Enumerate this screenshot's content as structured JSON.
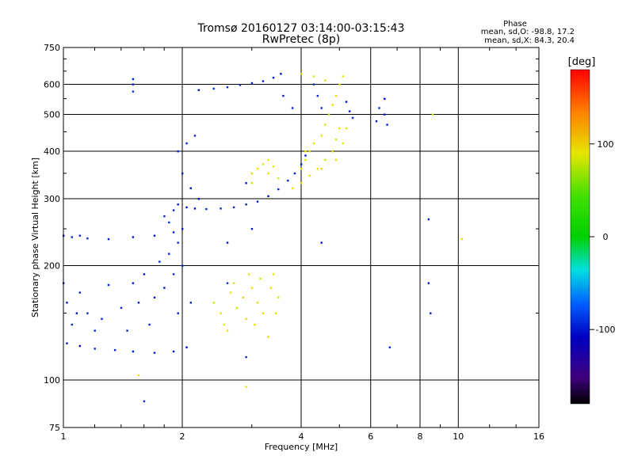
{
  "chart_data": {
    "type": "scatter",
    "title": "Tromsø 20160127 03:14:00-03:15:43",
    "subtitle": "RwPretec (8p)",
    "xlabel": "Frequency [MHz]",
    "ylabel": "Stationary phase Virtual Height [km]",
    "x_scale": "log",
    "y_scale": "log",
    "xlim": [
      1,
      16
    ],
    "ylim": [
      75,
      750
    ],
    "x_ticks": [
      1,
      2,
      4,
      6,
      8,
      10,
      16
    ],
    "x_tick_labels": [
      "1",
      "2",
      "4",
      "6",
      "8",
      "10",
      "16"
    ],
    "y_ticks": [
      75,
      100,
      200,
      300,
      400,
      500,
      600,
      750
    ],
    "y_tick_labels": [
      "75",
      "100",
      "200",
      "300",
      "400",
      "500",
      "600",
      "750"
    ],
    "grid": true,
    "stats": {
      "heading": "Phase",
      "line_o": "mean, sd,O: -98.8, 17.2",
      "line_x": "mean, sd,X:  84.3, 20.4"
    },
    "colorbar": {
      "label": "[deg]",
      "range": [
        -180,
        180
      ],
      "ticks": [
        100,
        0,
        -100
      ],
      "tick_labels": [
        "100",
        "0",
        "-100"
      ]
    },
    "series": [
      {
        "note_phase_deg": -100,
        "points": [
          [
            1.0,
            240
          ],
          [
            1.05,
            238
          ],
          [
            1.1,
            240
          ],
          [
            1.15,
            236
          ],
          [
            1.3,
            235
          ],
          [
            1.5,
            238
          ],
          [
            1.7,
            240
          ],
          [
            1.9,
            245
          ],
          [
            1.85,
            260
          ],
          [
            1.8,
            270
          ],
          [
            1.9,
            280
          ],
          [
            1.95,
            290
          ],
          [
            2.05,
            285
          ],
          [
            2.15,
            283
          ],
          [
            2.3,
            282
          ],
          [
            2.5,
            283
          ],
          [
            2.7,
            285
          ],
          [
            2.9,
            290
          ],
          [
            3.1,
            295
          ],
          [
            3.3,
            305
          ],
          [
            3.5,
            318
          ],
          [
            3.7,
            335
          ],
          [
            3.85,
            350
          ],
          [
            4.0,
            370
          ],
          [
            4.1,
            390
          ],
          [
            1.02,
            125
          ],
          [
            1.1,
            123
          ],
          [
            1.2,
            121
          ],
          [
            1.35,
            120
          ],
          [
            1.5,
            119
          ],
          [
            1.7,
            118
          ],
          [
            1.9,
            119
          ],
          [
            2.05,
            122
          ],
          [
            1.05,
            140
          ],
          [
            1.15,
            150
          ],
          [
            1.25,
            145
          ],
          [
            1.4,
            155
          ],
          [
            1.55,
            160
          ],
          [
            1.7,
            165
          ],
          [
            1.8,
            175
          ],
          [
            1.9,
            190
          ],
          [
            2.0,
            200
          ],
          [
            1.1,
            170
          ],
          [
            1.3,
            178
          ],
          [
            1.5,
            180
          ],
          [
            1.6,
            190
          ],
          [
            1.75,
            205
          ],
          [
            1.85,
            215
          ],
          [
            1.95,
            230
          ],
          [
            2.0,
            250
          ],
          [
            1.0,
            180
          ],
          [
            1.02,
            160
          ],
          [
            1.08,
            150
          ],
          [
            1.2,
            135
          ],
          [
            1.45,
            135
          ],
          [
            1.65,
            140
          ],
          [
            1.95,
            150
          ],
          [
            2.1,
            160
          ],
          [
            2.2,
            580
          ],
          [
            2.4,
            585
          ],
          [
            2.6,
            590
          ],
          [
            2.8,
            598
          ],
          [
            3.0,
            605
          ],
          [
            3.2,
            612
          ],
          [
            3.4,
            625
          ],
          [
            3.55,
            640
          ],
          [
            2.15,
            440
          ],
          [
            2.05,
            420
          ],
          [
            1.95,
            400
          ],
          [
            2.0,
            350
          ],
          [
            2.1,
            320
          ],
          [
            2.2,
            300
          ],
          [
            4.3,
            600
          ],
          [
            4.4,
            560
          ],
          [
            4.5,
            520
          ],
          [
            3.6,
            560
          ],
          [
            3.8,
            520
          ],
          [
            5.2,
            540
          ],
          [
            5.3,
            510
          ],
          [
            5.4,
            490
          ],
          [
            6.3,
            520
          ],
          [
            6.5,
            500
          ],
          [
            6.6,
            470
          ],
          [
            6.2,
            480
          ],
          [
            6.5,
            550
          ],
          [
            1.5,
            575
          ],
          [
            1.5,
            600
          ],
          [
            1.5,
            620
          ],
          [
            2.1,
            320
          ],
          [
            3.0,
            250
          ],
          [
            2.6,
            230
          ],
          [
            4.5,
            230
          ],
          [
            1.6,
            88
          ],
          [
            6.7,
            122
          ],
          [
            8.4,
            265
          ],
          [
            8.5,
            150
          ],
          [
            8.4,
            180
          ],
          [
            2.9,
            330
          ],
          [
            2.9,
            115
          ],
          [
            2.6,
            180
          ]
        ]
      },
      {
        "note_phase_deg": 100,
        "points": [
          [
            2.4,
            160
          ],
          [
            2.5,
            150
          ],
          [
            2.55,
            140
          ],
          [
            2.6,
            135
          ],
          [
            2.65,
            170
          ],
          [
            2.7,
            180
          ],
          [
            2.75,
            155
          ],
          [
            2.85,
            165
          ],
          [
            2.9,
            145
          ],
          [
            2.95,
            190
          ],
          [
            3.0,
            175
          ],
          [
            3.05,
            140
          ],
          [
            3.1,
            160
          ],
          [
            3.15,
            185
          ],
          [
            3.2,
            150
          ],
          [
            3.3,
            130
          ],
          [
            3.35,
            175
          ],
          [
            3.4,
            190
          ],
          [
            3.45,
            150
          ],
          [
            3.5,
            165
          ],
          [
            3.0,
            350
          ],
          [
            3.1,
            360
          ],
          [
            3.2,
            370
          ],
          [
            3.3,
            380
          ],
          [
            3.4,
            365
          ],
          [
            3.5,
            340
          ],
          [
            3.0,
            330
          ],
          [
            3.3,
            350
          ],
          [
            3.8,
            320
          ],
          [
            4.0,
            330
          ],
          [
            4.2,
            345
          ],
          [
            4.4,
            360
          ],
          [
            4.6,
            380
          ],
          [
            4.8,
            400
          ],
          [
            4.9,
            430
          ],
          [
            5.0,
            460
          ],
          [
            4.3,
            420
          ],
          [
            4.5,
            440
          ],
          [
            4.6,
            470
          ],
          [
            4.7,
            500
          ],
          [
            4.8,
            530
          ],
          [
            4.9,
            560
          ],
          [
            5.0,
            600
          ],
          [
            5.1,
            630
          ],
          [
            4.0,
            360
          ],
          [
            4.1,
            380
          ],
          [
            4.2,
            400
          ],
          [
            4.5,
            360
          ],
          [
            4.9,
            380
          ],
          [
            5.1,
            420
          ],
          [
            5.2,
            460
          ],
          [
            4.0,
            640
          ],
          [
            4.3,
            630
          ],
          [
            4.6,
            615
          ],
          [
            1.55,
            103
          ],
          [
            2.9,
            96
          ],
          [
            10.2,
            235
          ],
          [
            8.6,
            500
          ],
          [
            4.1,
            400
          ]
        ]
      }
    ]
  }
}
